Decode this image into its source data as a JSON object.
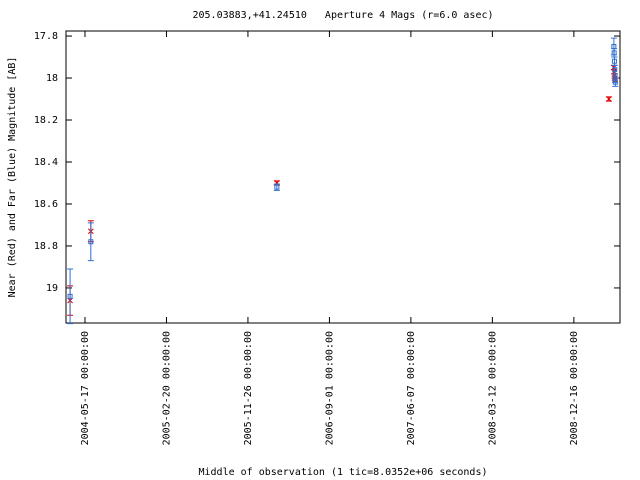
{
  "chart_data": {
    "type": "errorbar",
    "title": "205.03883,+41.24510   Aperture 4 Mags (r=6.0 asec)",
    "y_label": "Near (Red) and Far (Blue) Magnitude [AB]",
    "x_label": "Middle of observation (1 tic=8.0352e+06 seconds)",
    "xlim": [
      "2004-03-13 00:00:00",
      "2009-05-23 00:00:00"
    ],
    "xticks": [
      "2004-05-17 00:00:00",
      "2005-02-20 00:00:00",
      "2005-11-26 00:00:00",
      "2006-09-01 00:00:00",
      "2007-06-07 00:00:00",
      "2008-03-12 00:00:00",
      "2008-12-16 00:00:00"
    ],
    "ylim": [
      19.167,
      17.776
    ],
    "yticks": [
      17.8,
      18,
      18.2,
      18.4,
      18.6,
      18.8,
      19
    ],
    "series": [
      {
        "color": "#e00000",
        "marker": "x",
        "x": [
          "2004-03-27 00:00:00",
          "2004-06-06 00:00:00",
          "2006-03-05 00:00:00",
          "2009-04-15 00:00:00",
          "2009-05-02 00:00:00",
          "2009-05-03 00:00:00",
          "2009-05-04 00:00:00",
          "2009-05-05 00:00:00",
          "2009-05-06 00:00:00"
        ],
        "values": [
          19.06,
          18.73,
          18.5,
          18.1,
          17.95,
          17.97,
          17.99,
          18.0,
          18.01
        ],
        "errors": [
          0.07,
          0.05,
          0.01,
          0.01,
          0.01,
          0.01,
          0.01,
          0.01,
          0.01
        ]
      },
      {
        "color": "#3070d0",
        "marker": "square",
        "x": [
          "2004-03-27 00:00:00",
          "2004-06-06 00:00:00",
          "2006-03-05 00:00:00",
          "2009-05-02 00:00:00",
          "2009-05-03 00:00:00",
          "2009-05-04 00:00:00",
          "2009-05-05 00:00:00",
          "2009-05-06 00:00:00",
          "2009-05-07 00:00:00"
        ],
        "values": [
          19.04,
          18.78,
          18.52,
          17.85,
          17.88,
          17.92,
          17.96,
          18.0,
          18.02
        ],
        "errors": [
          0.13,
          0.09,
          0.015,
          0.04,
          0.02,
          0.02,
          0.02,
          0.02,
          0.02
        ]
      }
    ]
  }
}
